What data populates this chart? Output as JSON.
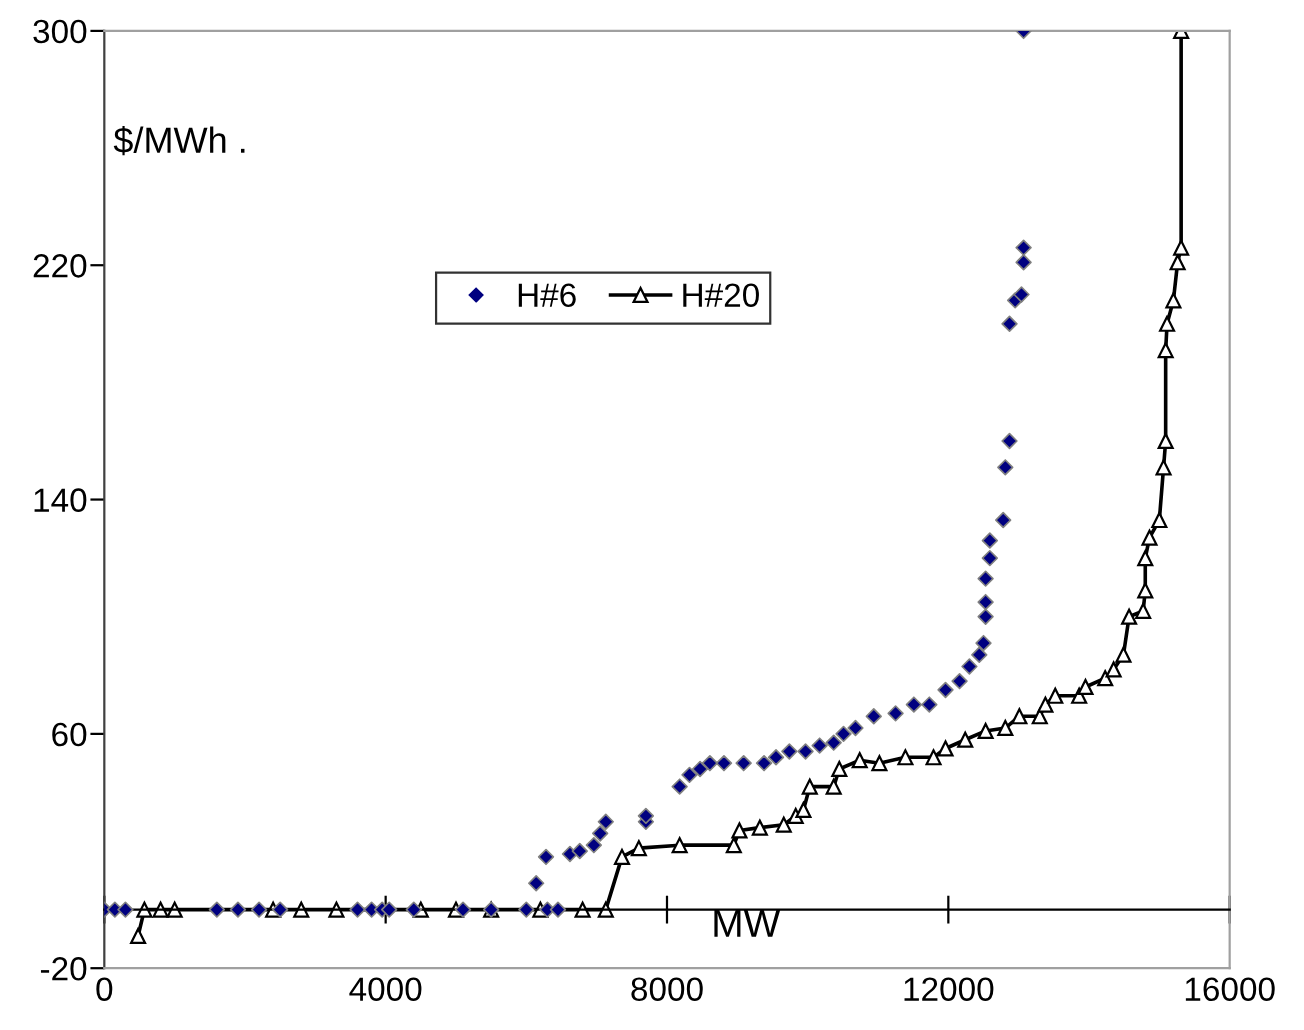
{
  "chart_data": {
    "type": "line",
    "xlabel": "MW",
    "ylabel": "$/MWh .",
    "xlim": [
      0,
      16000
    ],
    "xticks": [
      0,
      4000,
      8000,
      12000,
      16000
    ],
    "ylim": [
      -20,
      300
    ],
    "yticks": [
      -20,
      60,
      140,
      220,
      300
    ],
    "grid": false,
    "legend": "top left",
    "series": [
      {
        "name": "H#6",
        "type": "scatter",
        "marker": "diamond",
        "color": "#000080",
        "x": [
          0,
          150,
          300,
          1600,
          1900,
          2200,
          2500,
          3600,
          3800,
          3950,
          4050,
          4400,
          5100,
          5500,
          6000,
          6300,
          6450,
          6140,
          6280,
          6620,
          6760,
          6960,
          7050,
          7130,
          7700,
          7700,
          8180,
          8320,
          8470,
          8610,
          8810,
          9090,
          9380,
          9550,
          9740,
          9970,
          10170,
          10370,
          10510,
          10680,
          10940,
          11250,
          11510,
          11730,
          11960,
          12160,
          12300,
          12440,
          12500,
          12530,
          12530,
          12530,
          12590,
          12590,
          12780,
          12810,
          12870,
          12870,
          12950,
          13040,
          13070,
          13070,
          13070
        ],
        "values": [
          0,
          0,
          0,
          0,
          0,
          0,
          0,
          0,
          0,
          0,
          0,
          0,
          0,
          0,
          0,
          0,
          0,
          9,
          18,
          19,
          20,
          22,
          26,
          30,
          30,
          32,
          42,
          46,
          48,
          50,
          50,
          50,
          50,
          52,
          54,
          54,
          56,
          57,
          60,
          62,
          66,
          67,
          70,
          70,
          75,
          78,
          83,
          87,
          91,
          100,
          105,
          113,
          120,
          126,
          133,
          151,
          160,
          200,
          208,
          210,
          221,
          226,
          300
        ]
      },
      {
        "name": "H#20",
        "marker": "triangle",
        "line_style": "solid",
        "color": "#000000",
        "x": [
          480,
          570,
          800,
          1000,
          2400,
          2800,
          3300,
          4500,
          5000,
          5500,
          6200,
          6800,
          7130,
          7360,
          7600,
          8180,
          8950,
          9030,
          9320,
          9660,
          9830,
          9940,
          10030,
          10370,
          10450,
          10740,
          11020,
          11390,
          11790,
          11960,
          12240,
          12530,
          12810,
          13010,
          13300,
          13380,
          13520,
          13860,
          13950,
          14230,
          14350,
          14490,
          14570,
          14770,
          14800,
          14800,
          14860,
          15000,
          15060,
          15090,
          15090,
          15110,
          15200,
          15260,
          15310,
          15310
        ],
        "values": [
          -9,
          0,
          0,
          0,
          0,
          0,
          0,
          0,
          0,
          0,
          0,
          0,
          0,
          18,
          21,
          22,
          22,
          27,
          28,
          29,
          32,
          34,
          42,
          42,
          48,
          51,
          50,
          52,
          52,
          55,
          58,
          61,
          62,
          66,
          66,
          70,
          73,
          73,
          76,
          79,
          82,
          87,
          100,
          102,
          109,
          120,
          127,
          133,
          151,
          160,
          191,
          200,
          208,
          221,
          226,
          300
        ]
      }
    ]
  }
}
